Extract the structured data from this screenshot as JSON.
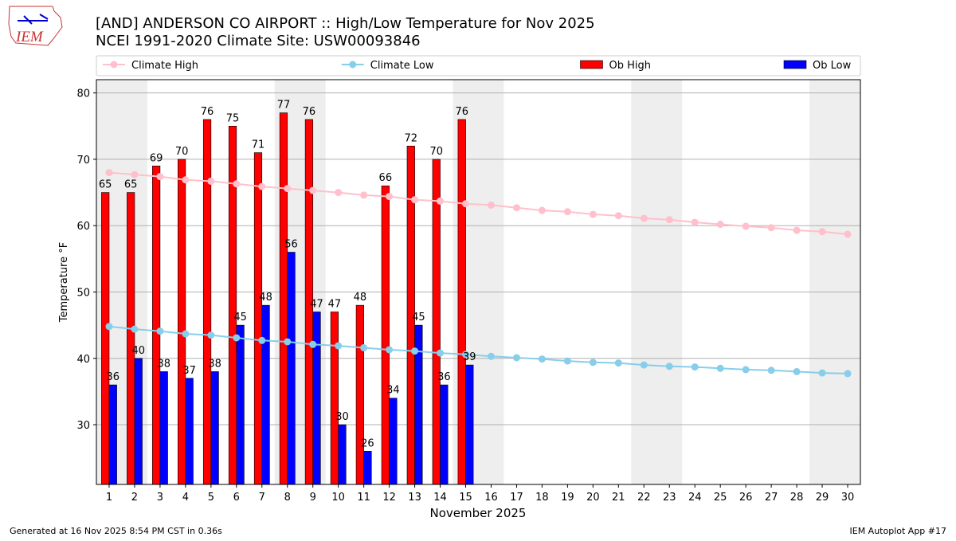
{
  "logo_text": "IEM",
  "chart_data": {
    "type": "bar",
    "title": "[AND] ANDERSON CO AIRPORT :: High/Low Temperature for Nov 2025",
    "subtitle": "NCEI 1991-2020 Climate Site: USW00093846",
    "x_label": "November 2025",
    "y_label": "Temperature °F",
    "x": [
      1,
      2,
      3,
      4,
      5,
      6,
      7,
      8,
      9,
      10,
      11,
      12,
      13,
      14,
      15,
      16,
      17,
      18,
      19,
      20,
      21,
      22,
      23,
      24,
      25,
      26,
      27,
      28,
      29,
      30
    ],
    "xlim": [
      0.5,
      30.5
    ],
    "xticks": [
      1,
      2,
      3,
      4,
      5,
      6,
      7,
      8,
      9,
      10,
      11,
      12,
      13,
      14,
      15,
      16,
      17,
      18,
      19,
      20,
      21,
      22,
      23,
      24,
      25,
      26,
      27,
      28,
      29,
      30
    ],
    "ylim": [
      21,
      82
    ],
    "yticks": [
      30,
      40,
      50,
      60,
      70,
      80
    ],
    "grid": true,
    "legend": "top",
    "series": [
      {
        "name": "Climate High",
        "type": "line",
        "color": "#ffc0cb",
        "values": [
          68.0,
          67.7,
          67.4,
          66.9,
          66.7,
          66.3,
          65.9,
          65.6,
          65.3,
          65.0,
          64.6,
          64.4,
          63.9,
          63.7,
          63.3,
          63.1,
          62.7,
          62.3,
          62.1,
          61.7,
          61.5,
          61.1,
          60.9,
          60.5,
          60.2,
          59.9,
          59.7,
          59.3,
          59.1,
          58.7
        ]
      },
      {
        "name": "Climate Low",
        "type": "line",
        "color": "#87ceeb",
        "values": [
          44.8,
          44.4,
          44.1,
          43.7,
          43.5,
          43.1,
          42.7,
          42.5,
          42.1,
          41.9,
          41.6,
          41.3,
          41.1,
          40.8,
          40.6,
          40.3,
          40.1,
          39.9,
          39.6,
          39.4,
          39.3,
          39.0,
          38.8,
          38.7,
          38.5,
          38.3,
          38.2,
          38.0,
          37.8,
          37.7
        ]
      },
      {
        "name": "Ob High",
        "type": "bar",
        "color": "#ff0000",
        "values": [
          65,
          65,
          69,
          70,
          76,
          75,
          71,
          77,
          76,
          47,
          48,
          66,
          72,
          70,
          76,
          null,
          null,
          null,
          null,
          null,
          null,
          null,
          null,
          null,
          null,
          null,
          null,
          null,
          null,
          null
        ]
      },
      {
        "name": "Ob Low",
        "type": "bar",
        "color": "#0000ff",
        "values": [
          36,
          40,
          38,
          37,
          38,
          45,
          48,
          56,
          47,
          30,
          26,
          34,
          45,
          36,
          39,
          null,
          null,
          null,
          null,
          null,
          null,
          null,
          null,
          null,
          null,
          null,
          null,
          null,
          null,
          null
        ]
      }
    ],
    "footer_left": "Generated at 16 Nov 2025 8:54 PM CST in 0.36s",
    "footer_right": "IEM Autoplot App #17"
  }
}
